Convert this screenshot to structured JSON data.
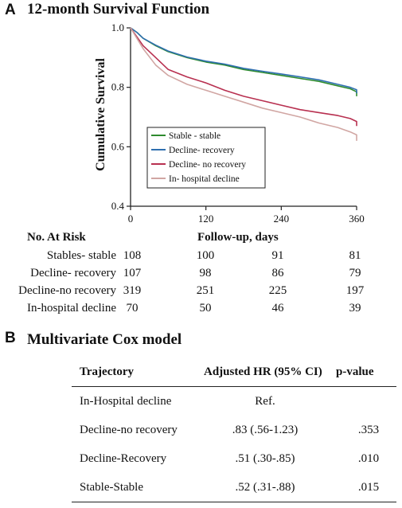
{
  "panel_a": {
    "letter": "A",
    "title": "12-month Survival Function"
  },
  "chart_data": {
    "type": "line",
    "title": "12-month Survival Function",
    "xlabel": "Follow-up, days",
    "ylabel": "Cumulative Survival",
    "xlim": [
      0,
      360
    ],
    "ylim": [
      0.4,
      1.0
    ],
    "x_ticks": [
      "0",
      "120",
      "240",
      "360"
    ],
    "y_ticks": [
      "0.4",
      "0.6",
      "0.8",
      "1.0"
    ],
    "grid": false,
    "legend_position": "bottom-left",
    "series": [
      {
        "name": "Stable - stable",
        "color": "#2e8b2e",
        "x": [
          0,
          10,
          20,
          40,
          60,
          90,
          120,
          150,
          180,
          210,
          240,
          270,
          300,
          330,
          350,
          360,
          360
        ],
        "y": [
          1.0,
          0.985,
          0.965,
          0.94,
          0.92,
          0.9,
          0.885,
          0.875,
          0.86,
          0.85,
          0.84,
          0.83,
          0.82,
          0.805,
          0.795,
          0.785,
          0.77
        ]
      },
      {
        "name": "Decline- recovery",
        "color": "#2f6fb0",
        "x": [
          0,
          10,
          20,
          40,
          60,
          90,
          120,
          150,
          180,
          210,
          240,
          270,
          300,
          330,
          350,
          360,
          360
        ],
        "y": [
          1.0,
          0.985,
          0.965,
          0.942,
          0.922,
          0.902,
          0.888,
          0.878,
          0.864,
          0.854,
          0.845,
          0.835,
          0.825,
          0.81,
          0.8,
          0.792,
          0.78
        ]
      },
      {
        "name": "Decline- no recovery",
        "color": "#b83050",
        "x": [
          0,
          10,
          20,
          40,
          60,
          90,
          120,
          150,
          180,
          210,
          240,
          270,
          300,
          330,
          350,
          360,
          360
        ],
        "y": [
          1.0,
          0.97,
          0.94,
          0.9,
          0.86,
          0.835,
          0.815,
          0.79,
          0.77,
          0.755,
          0.74,
          0.725,
          0.715,
          0.705,
          0.695,
          0.685,
          0.67
        ]
      },
      {
        "name": "In- hospital decline",
        "color": "#d1a6a3",
        "x": [
          0,
          10,
          20,
          40,
          60,
          90,
          120,
          150,
          180,
          210,
          240,
          270,
          300,
          330,
          350,
          360,
          360
        ],
        "y": [
          1.0,
          0.965,
          0.93,
          0.875,
          0.84,
          0.81,
          0.79,
          0.77,
          0.75,
          0.73,
          0.715,
          0.7,
          0.68,
          0.665,
          0.65,
          0.64,
          0.62
        ]
      }
    ]
  },
  "risk_table": {
    "header_label": "No. At Risk",
    "header_axis": "Follow-up, days",
    "rows": [
      {
        "label": "Stables- stable",
        "values": [
          "108",
          "100",
          "91",
          "81"
        ]
      },
      {
        "label": "Decline- recovery",
        "values": [
          "107",
          "98",
          "86",
          "79"
        ]
      },
      {
        "label": "Decline-no recovery",
        "values": [
          "319",
          "251",
          "225",
          "197"
        ]
      },
      {
        "label": "In-hospital decline",
        "values": [
          "70",
          "50",
          "46",
          "39"
        ]
      }
    ]
  },
  "panel_b": {
    "letter": "B",
    "title": "Multivariate Cox model"
  },
  "cox_table": {
    "headers": [
      "Trajectory",
      "Adjusted HR (95% CI)",
      "p-value"
    ],
    "rows": [
      {
        "trajectory": "In-Hospital decline",
        "hr": "Ref.",
        "p": ""
      },
      {
        "trajectory": "Decline-no recovery",
        "hr": ".83 (.56-1.23)",
        "p": ".353"
      },
      {
        "trajectory": "Decline-Recovery",
        "hr": ".51 (.30-.85)",
        "p": ".010"
      },
      {
        "trajectory": "Stable-Stable",
        "hr": ".52 (.31-.88)",
        "p": ".015"
      }
    ]
  }
}
